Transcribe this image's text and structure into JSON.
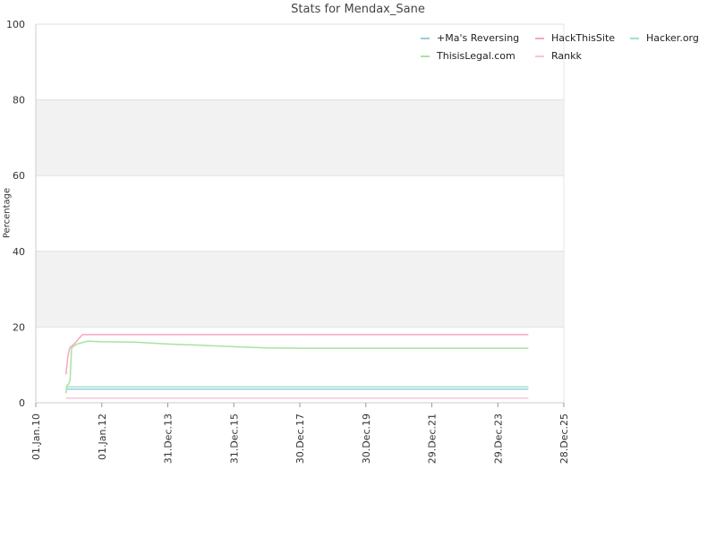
{
  "chart_data": {
    "type": "line",
    "title": "Stats for Mendax_Sane",
    "xlabel": "",
    "ylabel": "Percentage",
    "ylim": [
      0,
      100
    ],
    "yticks": [
      0,
      20,
      40,
      60,
      80,
      100
    ],
    "xlim": [
      "2010-01-01",
      "2025-12-28"
    ],
    "xticks": [
      "2010-01-01",
      "2012-01-01",
      "2013-12-31",
      "2015-12-31",
      "2017-12-30",
      "2019-12-30",
      "2021-12-29",
      "2023-12-29",
      "2025-12-28"
    ],
    "xtick_labels": [
      "01.Jan.10",
      "01.Jan.12",
      "31.Dec.13",
      "31.Dec.15",
      "30.Dec.17",
      "30.Dec.19",
      "29.Dec.21",
      "29.Dec.23",
      "28.Dec.25"
    ],
    "grid": true,
    "alternating_bands": true,
    "legend_position": "top-right",
    "series": [
      {
        "name": "+Ma's Reversing",
        "color": "#9ecae1",
        "points": [
          [
            "2010-12-01",
            3.6
          ],
          [
            "2024-12-01",
            3.6
          ]
        ]
      },
      {
        "name": "HackThisSite",
        "color": "#f4a6c3",
        "points": [
          [
            "2010-12-01",
            7.5
          ],
          [
            "2010-12-20",
            12
          ],
          [
            "2011-01-10",
            14.5
          ],
          [
            "2011-03-01",
            15.5
          ],
          [
            "2011-05-01",
            17.2
          ],
          [
            "2011-06-01",
            18
          ],
          [
            "2024-12-01",
            18
          ]
        ]
      },
      {
        "name": "Hacker.org",
        "color": "#a1e3c8",
        "points": [
          [
            "2010-12-01",
            4.2
          ],
          [
            "2024-12-01",
            4.2
          ]
        ]
      },
      {
        "name": "ThisisLegal.com",
        "color": "#a6e3a1",
        "points": [
          [
            "2010-12-01",
            2.5
          ],
          [
            "2010-12-10",
            4.5
          ],
          [
            "2011-01-01",
            5
          ],
          [
            "2011-01-15",
            6
          ],
          [
            "2011-02-01",
            14.5
          ],
          [
            "2011-04-01",
            15.5
          ],
          [
            "2011-08-01",
            16.3
          ],
          [
            "2012-01-01",
            16.1
          ],
          [
            "2013-01-01",
            16
          ],
          [
            "2014-01-01",
            15.5
          ],
          [
            "2015-01-01",
            15.2
          ],
          [
            "2016-01-01",
            14.8
          ],
          [
            "2017-01-01",
            14.5
          ],
          [
            "2018-01-01",
            14.4
          ],
          [
            "2024-12-01",
            14.4
          ]
        ]
      },
      {
        "name": "Rankk",
        "color": "#f7c4d8",
        "points": [
          [
            "2010-12-01",
            1.2
          ],
          [
            "2024-12-01",
            1.2
          ]
        ]
      }
    ]
  }
}
